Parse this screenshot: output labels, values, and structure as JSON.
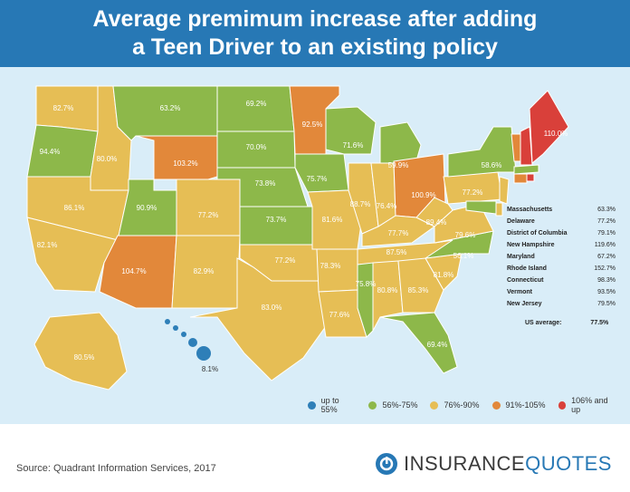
{
  "header": {
    "title_line1": "Average premimum increase after adding",
    "title_line2": "a Teen Driver to an existing policy"
  },
  "colors": {
    "blue": "#2e7fb8",
    "green": "#8db84a",
    "yellow": "#e6be55",
    "orange": "#e2883a",
    "red": "#d9403a"
  },
  "states": {
    "WA": "82.7%",
    "OR": "94.4%",
    "ID": "80.0%",
    "MT": "63.2%",
    "ND": "69.2%",
    "MN": "92.5%",
    "WI": "71.6%",
    "MI": "59.9%",
    "WY": "103.2%",
    "SD": "70.0%",
    "NE": "73.8%",
    "IA": "75.7%",
    "IL": "88.7%",
    "IN": "76.4%",
    "OH": "100.9%",
    "NV": "86.1%",
    "UT": "90.9%",
    "CO": "77.2%",
    "KS": "73.7%",
    "MO": "81.6%",
    "KY": "77.7%",
    "WV": "89.4%",
    "VA": "79.6%",
    "PA": "77.2%",
    "NY": "58.6%",
    "ME": "110.0%",
    "CA": "82.1%",
    "AZ": "104.7%",
    "NM": "82.9%",
    "OK": "77.2%",
    "AR": "78.3%",
    "TN": "87.5%",
    "NC": "56.1%",
    "SC": "81.8%",
    "TX": "83.0%",
    "LA": "77.6%",
    "MS": "75.8%",
    "AL": "80.8%",
    "GA": "85.3%",
    "FL": "69.4%",
    "AK": "80.5%",
    "HI": "8.1%"
  },
  "table": {
    "rows": [
      {
        "name": "Massachusetts",
        "value": "63.3%"
      },
      {
        "name": "Delaware",
        "value": "77.2%"
      },
      {
        "name": "District of Columbia",
        "value": "79.1%"
      },
      {
        "name": "New Hampshire",
        "value": "119.6%"
      },
      {
        "name": "Maryland",
        "value": "67.2%"
      },
      {
        "name": "Rhode Island",
        "value": "152.7%"
      },
      {
        "name": "Connecticut",
        "value": "98.3%"
      },
      {
        "name": "Vermont",
        "value": "93.5%"
      },
      {
        "name": "New Jersey",
        "value": "79.5%"
      }
    ],
    "us_average_label": "US average:",
    "us_average_value": "77.5%"
  },
  "legend": [
    {
      "label": "up to 55%",
      "color": "#2e7fb8"
    },
    {
      "label": "56%-75%",
      "color": "#8db84a"
    },
    {
      "label": "76%-90%",
      "color": "#e6be55"
    },
    {
      "label": "91%-105%",
      "color": "#e2883a"
    },
    {
      "label": "106% and up",
      "color": "#d9403a"
    }
  ],
  "footer": {
    "source": "Source: Quadrant Information Services, 2017",
    "logo_part1": "INSURANCE",
    "logo_part2": "QUOTES"
  }
}
